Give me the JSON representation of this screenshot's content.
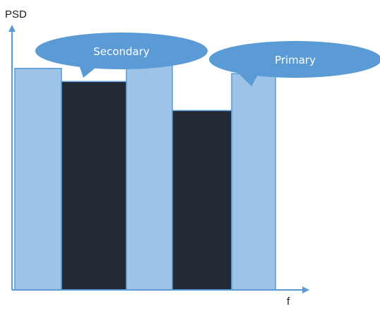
{
  "axes": {
    "y_label": "PSD",
    "x_label": "f"
  },
  "callouts": {
    "secondary": "Secondary",
    "primary": "Primary"
  },
  "colors": {
    "primary_fill": "#9dc3e6",
    "secondary_fill": "#222a35",
    "bar_stroke": "#5b9bd5",
    "axis": "#5b9bd5",
    "callout_fill": "#5b9bd5"
  },
  "bars": [
    {
      "band": "primary",
      "level": 0.84
    },
    {
      "band": "secondary",
      "level": 0.79
    },
    {
      "band": "primary",
      "level": 0.87
    },
    {
      "band": "secondary",
      "level": 0.68
    },
    {
      "band": "primary",
      "level": 0.82
    }
  ]
}
